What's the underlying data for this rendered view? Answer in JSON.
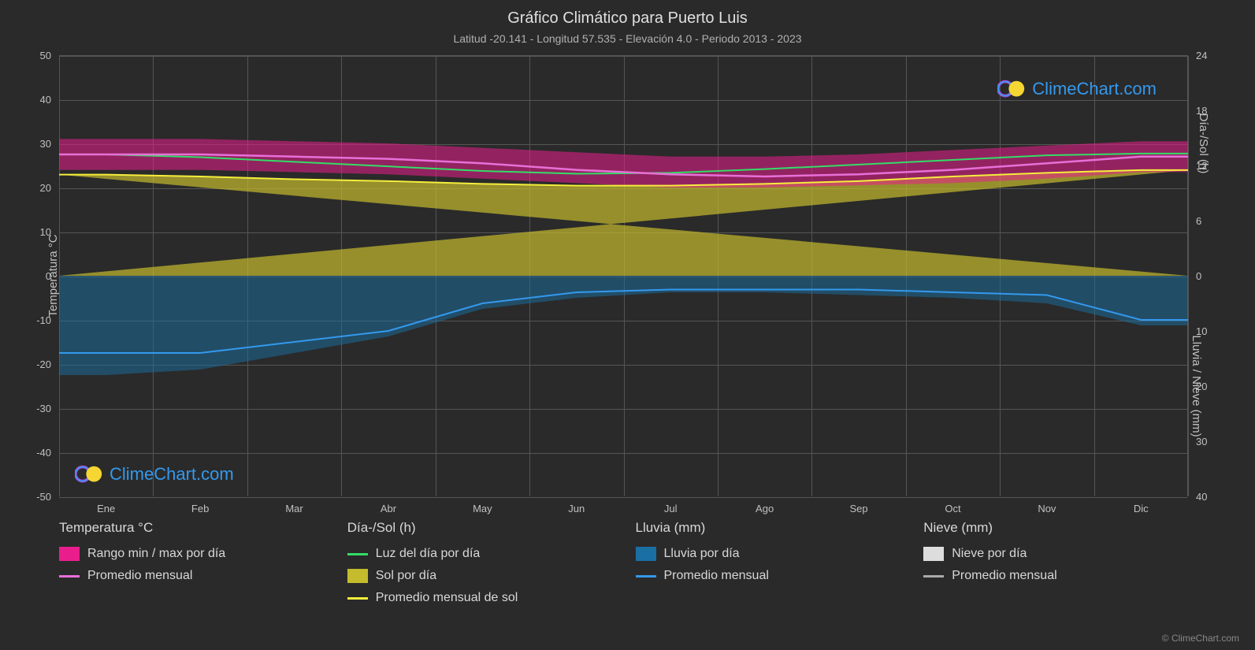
{
  "title": "Gráfico Climático para Puerto Luis",
  "subtitle": "Latitud -20.141 - Longitud 57.535 - Elevación 4.0 - Periodo 2013 - 2023",
  "copyright": "© ClimeChart.com",
  "watermark_text": "ClimeChart.com",
  "chart": {
    "type": "climate-composite",
    "background_color": "#2a2a2a",
    "grid_color": "#555555",
    "axis_label_color": "#c0c0c0",
    "title_color": "#e0e0e0",
    "title_fontsize": 20,
    "subtitle_fontsize": 14,
    "label_fontsize": 13,
    "left_axis": {
      "title": "Temperatura °C",
      "min": -50,
      "max": 50,
      "ticks": [
        -50,
        -40,
        -30,
        -20,
        -10,
        0,
        10,
        20,
        30,
        40,
        50
      ]
    },
    "right_axis_top": {
      "title": "Día-/Sol (h)",
      "min": 0,
      "max": 24,
      "ticks": [
        0,
        6,
        12,
        18,
        24
      ]
    },
    "right_axis_bottom": {
      "title": "Lluvia / Nieve (mm)",
      "min": 0,
      "max": 40,
      "ticks": [
        0,
        10,
        20,
        30,
        40
      ]
    },
    "months": [
      "Ene",
      "Feb",
      "Mar",
      "Abr",
      "May",
      "Jun",
      "Jul",
      "Ago",
      "Sep",
      "Oct",
      "Nov",
      "Dic"
    ],
    "series": {
      "temp_range_band": {
        "color": "#e91e8c",
        "opacity": 0.55,
        "min": [
          24,
          24,
          23.5,
          23,
          22,
          21,
          20,
          20,
          20.5,
          21,
          22,
          23.5
        ],
        "max": [
          31,
          31,
          30.5,
          30,
          29,
          28,
          27,
          27,
          27.5,
          28.5,
          29.5,
          30.5
        ]
      },
      "temp_avg_line": {
        "color": "#e86fd8",
        "width": 2.5,
        "values": [
          27.5,
          27.5,
          27,
          26.5,
          25.5,
          24,
          23,
          22.5,
          23,
          24,
          25.5,
          27
        ]
      },
      "daylight_line": {
        "color": "#33dd66",
        "width": 2,
        "values_h": [
          13.2,
          12.9,
          12.4,
          11.9,
          11.4,
          11.1,
          11.2,
          11.6,
          12.1,
          12.6,
          13.1,
          13.3
        ]
      },
      "sun_band": {
        "color": "#c4bb2d",
        "opacity": 0.7,
        "values_h": [
          11,
          10.8,
          10.5,
          10.3,
          10,
          9.8,
          9.8,
          10,
          10.3,
          10.8,
          11.2,
          11.5
        ]
      },
      "sun_avg_line": {
        "color": "#f5ee3c",
        "width": 2,
        "values_h": [
          11,
          10.8,
          10.5,
          10.3,
          10,
          9.8,
          9.8,
          10,
          10.3,
          10.8,
          11.2,
          11.5
        ]
      },
      "rain_band": {
        "color": "#1a6fa3",
        "opacity": 0.5,
        "max_mm": [
          18,
          17,
          14,
          11,
          6,
          4,
          3,
          3,
          3.5,
          4,
          5,
          9
        ]
      },
      "rain_avg_line": {
        "color": "#3399ee",
        "width": 2,
        "values_mm": [
          14,
          14,
          12,
          10,
          5,
          3,
          2.5,
          2.5,
          2.5,
          3,
          3.5,
          8
        ]
      },
      "snow_band": {
        "color": "#dddddd",
        "values_mm": [
          0,
          0,
          0,
          0,
          0,
          0,
          0,
          0,
          0,
          0,
          0,
          0
        ]
      },
      "snow_avg_line": {
        "color": "#aaaaaa",
        "width": 2,
        "values_mm": [
          0,
          0,
          0,
          0,
          0,
          0,
          0,
          0,
          0,
          0,
          0,
          0
        ]
      }
    }
  },
  "legend": {
    "cols": [
      {
        "header": "Temperatura °C",
        "items": [
          {
            "type": "swatch",
            "color": "#e91e8c",
            "label": "Rango min / max por día"
          },
          {
            "type": "line",
            "color": "#e86fd8",
            "label": "Promedio mensual"
          }
        ]
      },
      {
        "header": "Día-/Sol (h)",
        "items": [
          {
            "type": "line",
            "color": "#33dd66",
            "label": "Luz del día por día"
          },
          {
            "type": "swatch",
            "color": "#c4bb2d",
            "label": "Sol por día"
          },
          {
            "type": "line",
            "color": "#f5ee3c",
            "label": "Promedio mensual de sol"
          }
        ]
      },
      {
        "header": "Lluvia (mm)",
        "items": [
          {
            "type": "swatch",
            "color": "#1a6fa3",
            "label": "Lluvia por día"
          },
          {
            "type": "line",
            "color": "#3399ee",
            "label": "Promedio mensual"
          }
        ]
      },
      {
        "header": "Nieve (mm)",
        "items": [
          {
            "type": "swatch",
            "color": "#dddddd",
            "label": "Nieve por día"
          },
          {
            "type": "line",
            "color": "#aaaaaa",
            "label": "Promedio mensual"
          }
        ]
      }
    ]
  }
}
